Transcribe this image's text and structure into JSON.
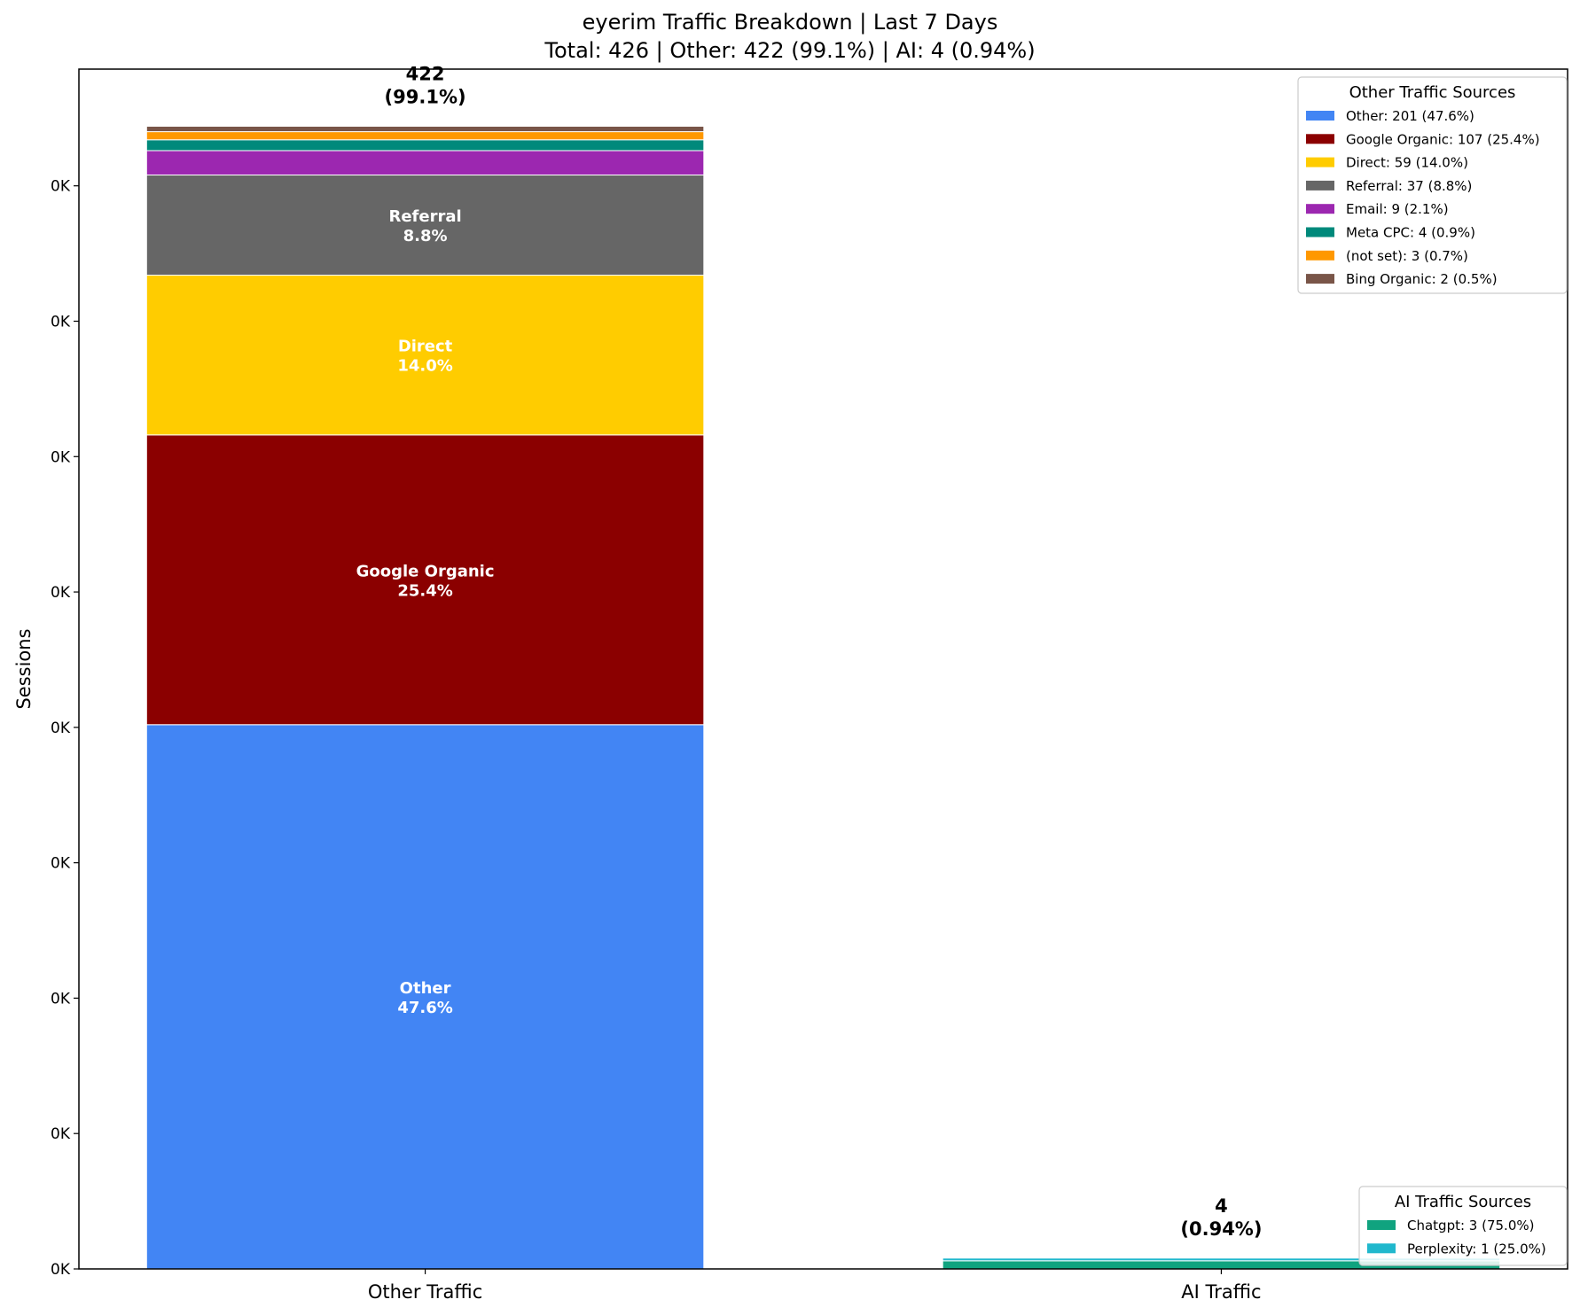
{
  "chart_data": {
    "type": "bar",
    "stacked": true,
    "title": "eyerim Traffic Breakdown | Last 7 Days",
    "subtitle": "Total: 426 | Other: 422 (99.1%) | AI: 4 (0.94%)",
    "xlabel": "",
    "ylabel": "Sessions",
    "categories": [
      "Other Traffic",
      "AI Traffic"
    ],
    "ylim": [
      0,
      443.1
    ],
    "yticks": [
      0,
      50,
      100,
      150,
      200,
      250,
      300,
      350,
      400
    ],
    "ytick_labels": [
      "0K",
      "0K",
      "0K",
      "0K",
      "0K",
      "0K",
      "0K",
      "0K",
      "0K"
    ],
    "grid": false,
    "bar_totals": [
      {
        "value": "422",
        "pct": "(99.1%)"
      },
      {
        "value": "4",
        "pct": "(0.94%)"
      }
    ],
    "stacks": [
      {
        "category": "Other Traffic",
        "segments": [
          {
            "name": "Other",
            "value": 201,
            "pct": "47.6%",
            "color": "#4285F4",
            "inner_label": true
          },
          {
            "name": "Google Organic",
            "value": 107,
            "pct": "25.4%",
            "color": "#8B0000",
            "inner_label": true
          },
          {
            "name": "Direct",
            "value": 59,
            "pct": "14.0%",
            "color": "#FFCC00",
            "inner_label": true
          },
          {
            "name": "Referral",
            "value": 37,
            "pct": "8.8%",
            "color": "#666666",
            "inner_label": true
          },
          {
            "name": "Email",
            "value": 9,
            "pct": "2.1%",
            "color": "#9C27B0",
            "inner_label": false
          },
          {
            "name": "Meta CPC",
            "value": 4,
            "pct": "0.9%",
            "color": "#00897B",
            "inner_label": false
          },
          {
            "name": "(not set)",
            "value": 3,
            "pct": "0.7%",
            "color": "#FF9800",
            "inner_label": false
          },
          {
            "name": "Bing Organic",
            "value": 2,
            "pct": "0.5%",
            "color": "#795548",
            "inner_label": false
          }
        ]
      },
      {
        "category": "AI Traffic",
        "segments": [
          {
            "name": "Chatgpt",
            "value": 3,
            "pct": "75.0%",
            "color": "#10A37F",
            "inner_label": false
          },
          {
            "name": "Perplexity",
            "value": 1,
            "pct": "25.0%",
            "color": "#20B8CD",
            "inner_label": false
          }
        ]
      }
    ],
    "legends": [
      {
        "title": "Other Traffic Sources",
        "placement": "upper-right",
        "entries": [
          {
            "label": "Other: 201 (47.6%)",
            "color": "#4285F4"
          },
          {
            "label": "Google Organic: 107 (25.4%)",
            "color": "#8B0000"
          },
          {
            "label": "Direct: 59 (14.0%)",
            "color": "#FFCC00"
          },
          {
            "label": "Referral: 37 (8.8%)",
            "color": "#666666"
          },
          {
            "label": "Email: 9 (2.1%)",
            "color": "#9C27B0"
          },
          {
            "label": "Meta CPC: 4 (0.9%)",
            "color": "#00897B"
          },
          {
            "label": "(not set): 3 (0.7%)",
            "color": "#FF9800"
          },
          {
            "label": "Bing Organic: 2 (0.5%)",
            "color": "#795548"
          }
        ]
      },
      {
        "title": "AI Traffic Sources",
        "placement": "lower-right",
        "entries": [
          {
            "label": "Chatgpt: 3 (75.0%)",
            "color": "#10A37F"
          },
          {
            "label": "Perplexity: 1 (25.0%)",
            "color": "#20B8CD"
          }
        ]
      }
    ]
  }
}
